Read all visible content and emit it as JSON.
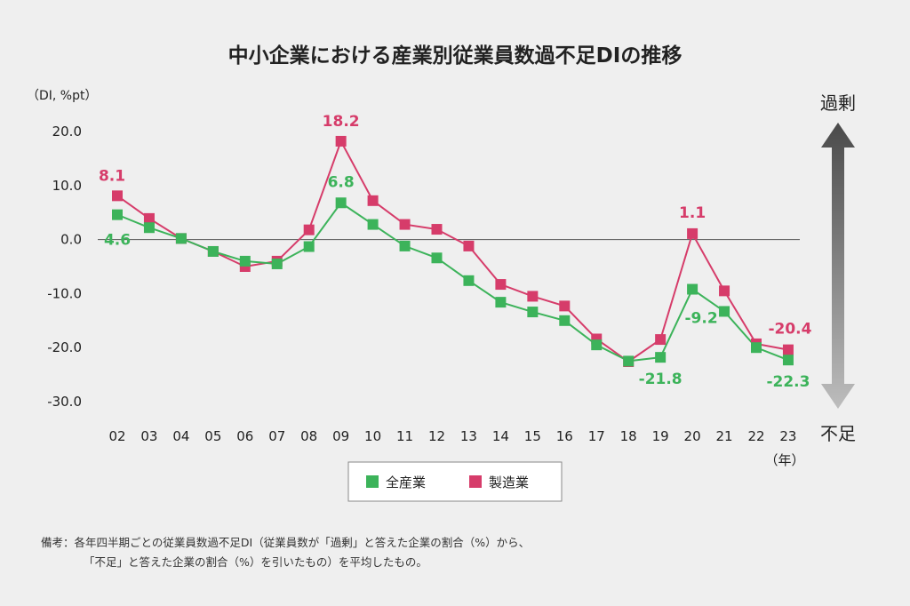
{
  "chart_data": {
    "type": "line",
    "title": "中小企業における産業別従業員数過不足DIの推移",
    "ylabel": "（DI, %pt）",
    "xlabel": "（年）",
    "ylim": [
      -30,
      20
    ],
    "yticks": [
      20,
      10,
      0,
      -10,
      -20,
      -30
    ],
    "ytick_labels": [
      "20.0",
      "10.0",
      "0.0",
      "-10.0",
      "-20.0",
      "-30.0"
    ],
    "categories": [
      "02",
      "03",
      "04",
      "05",
      "06",
      "07",
      "08",
      "09",
      "10",
      "11",
      "12",
      "13",
      "14",
      "15",
      "16",
      "17",
      "18",
      "19",
      "20",
      "21",
      "22",
      "23"
    ],
    "series": [
      {
        "name": "全産業",
        "color": "#3cb35a",
        "values": [
          4.6,
          2.2,
          0.2,
          -2.2,
          -4.0,
          -4.5,
          -1.3,
          6.8,
          2.8,
          -1.2,
          -3.4,
          -7.6,
          -11.6,
          -13.4,
          -15.0,
          -19.5,
          -22.5,
          -21.8,
          -9.2,
          -13.3,
          -20.0,
          -22.3
        ]
      },
      {
        "name": "製造業",
        "color": "#d63c6a",
        "values": [
          8.1,
          3.9,
          0.2,
          -2.2,
          -5.0,
          -4.0,
          1.8,
          18.2,
          7.2,
          2.8,
          1.9,
          -1.2,
          -8.3,
          -10.5,
          -12.3,
          -18.4,
          -22.6,
          -18.5,
          1.1,
          -9.5,
          -19.3,
          -20.4
        ]
      }
    ],
    "data_labels": [
      {
        "series": "全産業",
        "index": 0,
        "text": "4.6"
      },
      {
        "series": "全産業",
        "index": 7,
        "text": "6.8"
      },
      {
        "series": "全産業",
        "index": 17,
        "text": "-21.8"
      },
      {
        "series": "全産業",
        "index": 18,
        "text": "-9.2"
      },
      {
        "series": "全産業",
        "index": 21,
        "text": "-22.3"
      },
      {
        "series": "製造業",
        "index": 0,
        "text": "8.1"
      },
      {
        "series": "製造業",
        "index": 7,
        "text": "18.2"
      },
      {
        "series": "製造業",
        "index": 18,
        "text": "1.1"
      },
      {
        "series": "製造業",
        "index": 21,
        "text": "-20.4"
      }
    ],
    "arrow": {
      "top_label": "過剰",
      "bottom_label": "不足"
    },
    "legend_position": "bottom-center",
    "grid": false
  },
  "note": {
    "line1": "備考：各年四半期ごとの従業員数過不足DI（従業員数が「過剰」と答えた企業の割合（%）から、",
    "line2": "「不足」と答えた企業の割合（%）を引いたもの）を平均したもの。"
  }
}
